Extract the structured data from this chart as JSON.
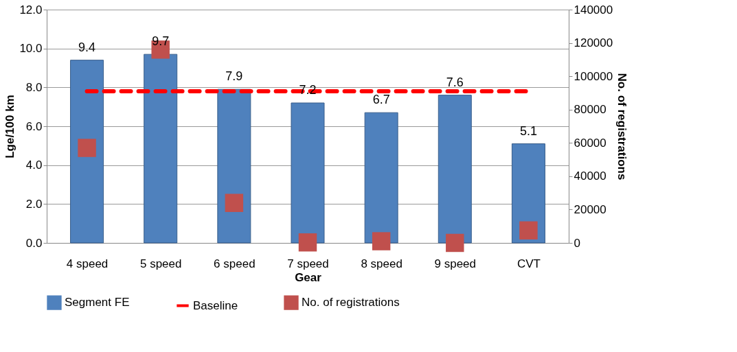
{
  "chart_data": {
    "type": "bar",
    "xlabel": "Gear",
    "ylabel": "Lge/100 km",
    "y2label": "No. of registrations",
    "categories": [
      "4 speed",
      "5 speed",
      "6 speed",
      "7 speed",
      "8 speed",
      "9 speed",
      "CVT"
    ],
    "series": [
      {
        "name": "Segment FE",
        "color": "#4f81bd",
        "values": [
          9.4,
          9.7,
          7.9,
          7.2,
          6.7,
          7.6,
          5.1
        ],
        "data_labels": true
      },
      {
        "name": "Baseline",
        "type": "line",
        "color": "#ff0000",
        "line_style": "dashed",
        "values": [
          7.8,
          7.8,
          7.8,
          7.8,
          7.8,
          7.8,
          7.8
        ]
      },
      {
        "name": "No. of registrations",
        "type": "scatter",
        "axis": "y2",
        "marker": "square",
        "color": "#c0504d",
        "values": [
          57000,
          116000,
          24000,
          300,
          1000,
          0,
          7500
        ]
      }
    ],
    "ylim": [
      0,
      12
    ],
    "yticks": [
      {
        "value": 0,
        "label": "0.0"
      },
      {
        "value": 2,
        "label": "2.0"
      },
      {
        "value": 4,
        "label": "4.0"
      },
      {
        "value": 6,
        "label": "6.0"
      },
      {
        "value": 8,
        "label": "8.0"
      },
      {
        "value": 10,
        "label": "10.0"
      },
      {
        "value": 12,
        "label": "12.0"
      }
    ],
    "y2lim": [
      0,
      140000
    ],
    "y2ticks": [
      0,
      20000,
      40000,
      60000,
      80000,
      100000,
      120000,
      140000
    ],
    "grid": "y",
    "legend": "bottom"
  }
}
